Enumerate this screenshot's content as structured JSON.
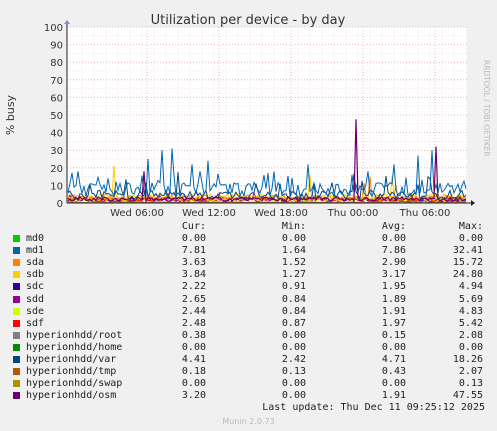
{
  "chart_data": {
    "type": "line",
    "title": "Utilization per device - by day",
    "ylabel": "% busy",
    "ylim": [
      0,
      100
    ],
    "yticks": [
      0,
      10,
      20,
      30,
      40,
      50,
      60,
      70,
      80,
      90,
      100
    ],
    "xticks": [
      "Wed 06:00",
      "Wed 12:00",
      "Wed 18:00",
      "Thu 00:00",
      "Thu 06:00"
    ],
    "watermark": "RRDTOOL / TOBI OETIKER",
    "grid": true,
    "columns": [
      "Cur:",
      "Min:",
      "Avg:",
      "Max:"
    ],
    "series": [
      {
        "name": "md0",
        "color": "#00CC00",
        "cur": "0.00",
        "min": "0.00",
        "avg": "0.00",
        "max": "0.00"
      },
      {
        "name": "md1",
        "color": "#0066B3",
        "cur": "7.81",
        "min": "1.64",
        "avg": "7.86",
        "max": "32.41"
      },
      {
        "name": "sda",
        "color": "#FF8000",
        "cur": "3.63",
        "min": "1.52",
        "avg": "2.90",
        "max": "15.72"
      },
      {
        "name": "sdb",
        "color": "#FFCC00",
        "cur": "3.84",
        "min": "1.27",
        "avg": "3.17",
        "max": "24.80"
      },
      {
        "name": "sdc",
        "color": "#330099",
        "cur": "2.22",
        "min": "0.91",
        "avg": "1.95",
        "max": "4.94"
      },
      {
        "name": "sdd",
        "color": "#990099",
        "cur": "2.65",
        "min": "0.84",
        "avg": "1.89",
        "max": "5.69"
      },
      {
        "name": "sde",
        "color": "#CCFF00",
        "cur": "2.44",
        "min": "0.84",
        "avg": "1.91",
        "max": "4.83"
      },
      {
        "name": "sdf",
        "color": "#FF0000",
        "cur": "2.48",
        "min": "0.87",
        "avg": "1.97",
        "max": "5.42"
      },
      {
        "name": "hyperionhdd/root",
        "color": "#808080",
        "cur": "0.38",
        "min": "0.00",
        "avg": "0.15",
        "max": "2.08"
      },
      {
        "name": "hyperionhdd/home",
        "color": "#008F00",
        "cur": "0.00",
        "min": "0.00",
        "avg": "0.00",
        "max": "0.00"
      },
      {
        "name": "hyperionhdd/var",
        "color": "#00487D",
        "cur": "4.41",
        "min": "2.42",
        "avg": "4.71",
        "max": "18.26"
      },
      {
        "name": "hyperionhdd/tmp",
        "color": "#B35A00",
        "cur": "0.18",
        "min": "0.13",
        "avg": "0.43",
        "max": "2.07"
      },
      {
        "name": "hyperionhdd/swap",
        "color": "#B38F00",
        "cur": "0.00",
        "min": "0.00",
        "avg": "0.00",
        "max": "0.13"
      },
      {
        "name": "hyperionhdd/osm",
        "color": "#6B006B",
        "cur": "3.20",
        "min": "0.00",
        "avg": "1.91",
        "max": "47.55"
      }
    ],
    "last_update": "Last update: Thu Dec 11 09:25:12 2025",
    "generator": "Munin 2.0.73"
  }
}
